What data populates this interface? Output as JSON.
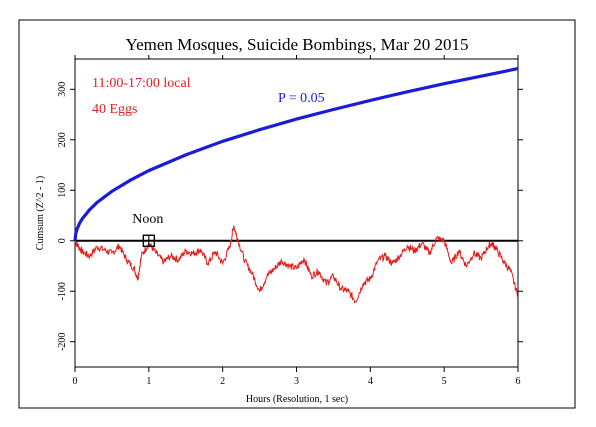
{
  "chart_data": {
    "type": "line",
    "title": "Yemen Mosques, Suicide Bombings, Mar 20 2015",
    "xlabel": "Hours (Resolution, 1 sec)",
    "ylabel": "Cumsum (Z^2 - 1)",
    "xlim": [
      0,
      6
    ],
    "ylim": [
      -250,
      360
    ],
    "x_ticks": [
      0,
      1,
      2,
      3,
      4,
      5,
      6
    ],
    "y_ticks": [
      -200,
      -100,
      0,
      100,
      200,
      300
    ],
    "annotations": {
      "time_range": "11:00-17:00 local",
      "eggs": "40 Eggs",
      "p_label": "P = 0.05",
      "noon": "Noon",
      "noon_x": 1
    },
    "colors": {
      "cumsum": "#e0201c",
      "probability": "#1c1cd8",
      "baseline": "#000000"
    },
    "series": [
      {
        "x": [
          0,
          0.05,
          0.1,
          0.2,
          0.3,
          0.4,
          0.5,
          0.6,
          0.7,
          0.8,
          0.85,
          0.9,
          1.0,
          1.1,
          1.2,
          1.3,
          1.4,
          1.5,
          1.6,
          1.7,
          1.8,
          1.9,
          2.0,
          2.1,
          2.15,
          2.2,
          2.3,
          2.4,
          2.5,
          2.6,
          2.7,
          2.8,
          2.9,
          3.0,
          3.1,
          3.2,
          3.3,
          3.4,
          3.5,
          3.6,
          3.7,
          3.8,
          3.9,
          4.0,
          4.1,
          4.2,
          4.3,
          4.4,
          4.5,
          4.6,
          4.7,
          4.8,
          4.9,
          5.0,
          5.1,
          5.2,
          5.3,
          5.4,
          5.5,
          5.6,
          5.65,
          5.7,
          5.8,
          5.9,
          6.0
        ],
        "values": [
          0,
          -12,
          -22,
          -30,
          -12,
          -18,
          -25,
          -10,
          -38,
          -55,
          -75,
          -30,
          -5,
          -25,
          -42,
          -30,
          -38,
          -20,
          -25,
          -18,
          -45,
          -22,
          -45,
          -10,
          30,
          5,
          -40,
          -65,
          -100,
          -70,
          -55,
          -40,
          -50,
          -55,
          -35,
          -70,
          -60,
          -85,
          -70,
          -95,
          -100,
          -120,
          -85,
          -75,
          -40,
          -30,
          -45,
          -30,
          -10,
          -20,
          -5,
          -25,
          5,
          0,
          -45,
          -20,
          -50,
          -25,
          -35,
          -10,
          -5,
          -15,
          -40,
          -60,
          -110
        ]
      },
      {
        "x": [
          0,
          0.01,
          0.03,
          0.06,
          0.1,
          0.2,
          0.3,
          0.5,
          0.75,
          1,
          1.5,
          2,
          2.5,
          3,
          3.5,
          4,
          4.5,
          5,
          5.5,
          6
        ],
        "values": [
          0,
          14,
          24,
          34,
          44,
          62,
          76,
          98,
          120,
          139,
          170,
          197,
          220,
          241,
          260,
          278,
          295,
          311,
          326,
          341
        ]
      }
    ]
  }
}
